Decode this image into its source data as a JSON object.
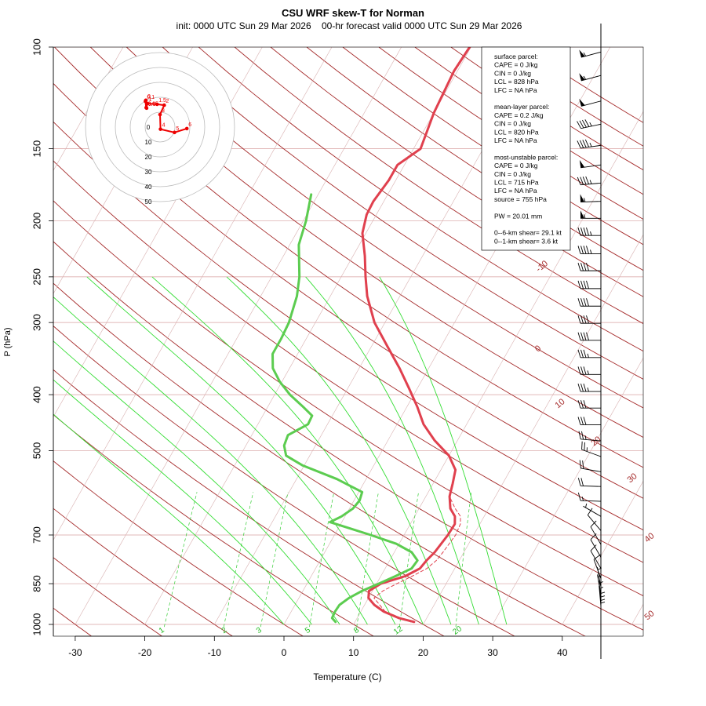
{
  "chart_data": {
    "type": "line",
    "title": "CSU WRF skew-T for Norman",
    "subtitle": "init: 0000 UTC Sun 29 Mar 2026    00-hr forecast valid 0000 UTC Sun 29 Mar 2026",
    "xlabel": "Temperature (C)",
    "ylabel": "P (hPa)",
    "xlim": [
      -33,
      45
    ],
    "ylim": [
      1000,
      100
    ],
    "y_scale": "log",
    "x_ticks": [
      -30,
      -20,
      -10,
      0,
      10,
      20,
      30,
      40
    ],
    "y_ticks": [
      100,
      150,
      200,
      250,
      300,
      400,
      500,
      700,
      850,
      1000
    ],
    "grid": true,
    "isotherm_labels": [
      {
        "value": -10,
        "text": "-10"
      },
      {
        "value": 0,
        "text": "0"
      },
      {
        "value": 10,
        "text": "10"
      },
      {
        "value": 20,
        "text": "20"
      },
      {
        "value": 30,
        "text": "30"
      },
      {
        "value": 40,
        "text": "40"
      },
      {
        "value": 50,
        "text": "50"
      }
    ],
    "mixing_ratio_labels": [
      {
        "value": 1,
        "text": "1",
        "x": -16.5
      },
      {
        "value": 2,
        "text": "2",
        "x": -7.5
      },
      {
        "value": 3,
        "text": "3",
        "x": -2.5
      },
      {
        "value": 5,
        "text": "5",
        "x": 4.5
      },
      {
        "value": 8,
        "text": "8",
        "x": 11.5
      },
      {
        "value": 12,
        "text": "12",
        "x": 17.5
      },
      {
        "value": 20,
        "text": "20",
        "x": 26.0
      }
    ],
    "series": [
      {
        "name": "temperature",
        "color": "#e0404e",
        "points": [
          [
            990,
            18.5
          ],
          [
            975,
            16.0
          ],
          [
            950,
            13.3
          ],
          [
            925,
            11.4
          ],
          [
            900,
            10.0
          ],
          [
            875,
            9.5
          ],
          [
            850,
            10.6
          ],
          [
            825,
            13.5
          ],
          [
            800,
            15.0
          ],
          [
            775,
            15.3
          ],
          [
            750,
            15.8
          ],
          [
            700,
            16.3
          ],
          [
            670,
            16.4
          ],
          [
            650,
            15.8
          ],
          [
            630,
            14.5
          ],
          [
            600,
            13.4
          ],
          [
            570,
            12.8
          ],
          [
            540,
            12.1
          ],
          [
            510,
            10.0
          ],
          [
            480,
            6.7
          ],
          [
            450,
            3.8
          ],
          [
            420,
            1.5
          ],
          [
            390,
            -1.2
          ],
          [
            360,
            -4.2
          ],
          [
            330,
            -7.7
          ],
          [
            300,
            -11.5
          ],
          [
            270,
            -14.7
          ],
          [
            250,
            -16.5
          ],
          [
            230,
            -18.3
          ],
          [
            210,
            -20.5
          ],
          [
            195,
            -21.4
          ],
          [
            185,
            -21.5
          ],
          [
            170,
            -21.0
          ],
          [
            160,
            -21.0
          ],
          [
            150,
            -19.0
          ],
          [
            130,
            -20.0
          ],
          [
            110,
            -20.5
          ],
          [
            100,
            -20.2
          ]
        ]
      },
      {
        "name": "dewpoint",
        "color": "#5ccc50",
        "points": [
          [
            990,
            7.2
          ],
          [
            975,
            6.4
          ],
          [
            950,
            6.3
          ],
          [
            925,
            6.4
          ],
          [
            900,
            7.2
          ],
          [
            875,
            8.5
          ],
          [
            850,
            10.3
          ],
          [
            825,
            12.1
          ],
          [
            800,
            13.8
          ],
          [
            775,
            14.0
          ],
          [
            750,
            12.5
          ],
          [
            725,
            9.6
          ],
          [
            700,
            5.2
          ],
          [
            680,
            1.3
          ],
          [
            665,
            -1.7
          ],
          [
            650,
            -0.5
          ],
          [
            630,
            0.5
          ],
          [
            610,
            0.8
          ],
          [
            590,
            0.5
          ],
          [
            560,
            -4.2
          ],
          [
            530,
            -10.3
          ],
          [
            510,
            -13.4
          ],
          [
            490,
            -14.5
          ],
          [
            470,
            -14.8
          ],
          [
            450,
            -12.8
          ],
          [
            435,
            -12.9
          ],
          [
            420,
            -14.9
          ],
          [
            400,
            -17.8
          ],
          [
            380,
            -20.3
          ],
          [
            360,
            -22.4
          ],
          [
            340,
            -23.6
          ],
          [
            320,
            -23.6
          ],
          [
            300,
            -23.8
          ],
          [
            270,
            -24.8
          ],
          [
            250,
            -26.0
          ],
          [
            220,
            -28.7
          ],
          [
            200,
            -29.6
          ],
          [
            180,
            -31.0
          ]
        ]
      },
      {
        "name": "parcel",
        "color": "#e0404e",
        "points": [
          [
            990,
            18.0
          ],
          [
            950,
            13.5
          ],
          [
            900,
            10.8
          ],
          [
            875,
            11.5
          ],
          [
            850,
            12.9
          ],
          [
            825,
            14.5
          ],
          [
            800,
            16.0
          ],
          [
            775,
            16.7
          ],
          [
            750,
            17.0
          ],
          [
            700,
            17.4
          ],
          [
            670,
            17.2
          ],
          [
            650,
            16.6
          ],
          [
            630,
            15.2
          ],
          [
            610,
            14.0
          ],
          [
            600,
            13.4
          ]
        ]
      }
    ],
    "hodograph": {
      "rings": [
        10,
        20,
        30,
        40,
        50
      ],
      "ring_labels": [
        "0",
        "10",
        "20",
        "30",
        "40",
        "50"
      ],
      "points": [
        {
          "label": "6",
          "u": 18.0,
          "v": -1.0
        },
        {
          "label": "5",
          "u": 9.7,
          "v": -3.6
        },
        {
          "label": "4",
          "u": 0.3,
          "v": -1.4
        },
        {
          "label": "3",
          "u": 0.0,
          "v": 8.4
        },
        {
          "label": "2",
          "u": 2.8,
          "v": 14.7
        },
        {
          "label": "1.5",
          "u": -2.0,
          "v": 15.3
        },
        {
          "label": "1",
          "u": -8.6,
          "v": 15.8
        },
        {
          "label": "0.5",
          "u": -9.0,
          "v": 12.7
        },
        {
          "label": "0.1",
          "u": -9.8,
          "v": 17.3
        },
        {
          "label": "0.05",
          "u": -9.3,
          "v": 13.0
        },
        {
          "label": "0",
          "u": -9.5,
          "v": 18.0
        }
      ]
    },
    "info_box": [
      "surface parcel:",
      "CAPE = 0 J/kg",
      "CIN = 0 J/kg",
      "LCL = 828 hPa",
      "LFC = NA hPa",
      "",
      "mean-layer parcel:",
      "CAPE = 0.2 J/kg",
      "CIN = 0 J/kg",
      "LCL = 820 hPa",
      "LFC = NA hPa",
      "",
      "most-unstable parcel:",
      "CAPE = 0 J/kg",
      "CIN = 0 J/kg",
      "LCL = 715 hPa",
      "LFC = NA hPa",
      "source = 755 hPa",
      "",
      "PW =  20.01 mm",
      "",
      "0--6-km shear= 29.1 kt",
      "0--1-km shear= 3.6 kt"
    ],
    "wind_barbs": [
      {
        "p": 102,
        "speed": 55,
        "dir": 255
      },
      {
        "p": 112,
        "speed": 55,
        "dir": 255
      },
      {
        "p": 124,
        "speed": 50,
        "dir": 255
      },
      {
        "p": 136,
        "speed": 45,
        "dir": 258
      },
      {
        "p": 148,
        "speed": 45,
        "dir": 262
      },
      {
        "p": 160,
        "speed": 50,
        "dir": 262
      },
      {
        "p": 172,
        "speed": 45,
        "dir": 265
      },
      {
        "p": 185,
        "speed": 55,
        "dir": 268
      },
      {
        "p": 198,
        "speed": 55,
        "dir": 270
      },
      {
        "p": 212,
        "speed": 45,
        "dir": 270
      },
      {
        "p": 228,
        "speed": 45,
        "dir": 270
      },
      {
        "p": 244,
        "speed": 40,
        "dir": 270
      },
      {
        "p": 262,
        "speed": 40,
        "dir": 270
      },
      {
        "p": 281,
        "speed": 40,
        "dir": 270
      },
      {
        "p": 301,
        "speed": 40,
        "dir": 270
      },
      {
        "p": 322,
        "speed": 40,
        "dir": 270
      },
      {
        "p": 345,
        "speed": 35,
        "dir": 270
      },
      {
        "p": 369,
        "speed": 35,
        "dir": 270
      },
      {
        "p": 395,
        "speed": 35,
        "dir": 270
      },
      {
        "p": 422,
        "speed": 30,
        "dir": 270
      },
      {
        "p": 451,
        "speed": 30,
        "dir": 270
      },
      {
        "p": 481,
        "speed": 25,
        "dir": 275
      },
      {
        "p": 512,
        "speed": 25,
        "dir": 290
      },
      {
        "p": 544,
        "speed": 20,
        "dir": 280
      },
      {
        "p": 577,
        "speed": 20,
        "dir": 272
      },
      {
        "p": 612,
        "speed": 15,
        "dir": 272
      },
      {
        "p": 650,
        "speed": 5,
        "dir": 300
      },
      {
        "p": 688,
        "speed": 10,
        "dir": 320
      },
      {
        "p": 727,
        "speed": 10,
        "dir": 330
      },
      {
        "p": 765,
        "speed": 10,
        "dir": 330
      },
      {
        "p": 800,
        "speed": 10,
        "dir": 330
      },
      {
        "p": 833,
        "speed": 10,
        "dir": 340
      },
      {
        "p": 862,
        "speed": 5,
        "dir": 350
      },
      {
        "p": 888,
        "speed": 5,
        "dir": 350
      },
      {
        "p": 910,
        "speed": 5,
        "dir": 355
      },
      {
        "p": 930,
        "speed": 5,
        "dir": 355
      },
      {
        "p": 948,
        "speed": 5,
        "dir": 0
      },
      {
        "p": 962,
        "speed": 5,
        "dir": 0
      },
      {
        "p": 975,
        "speed": 5,
        "dir": 0
      },
      {
        "p": 986,
        "speed": 5,
        "dir": 0
      }
    ]
  }
}
